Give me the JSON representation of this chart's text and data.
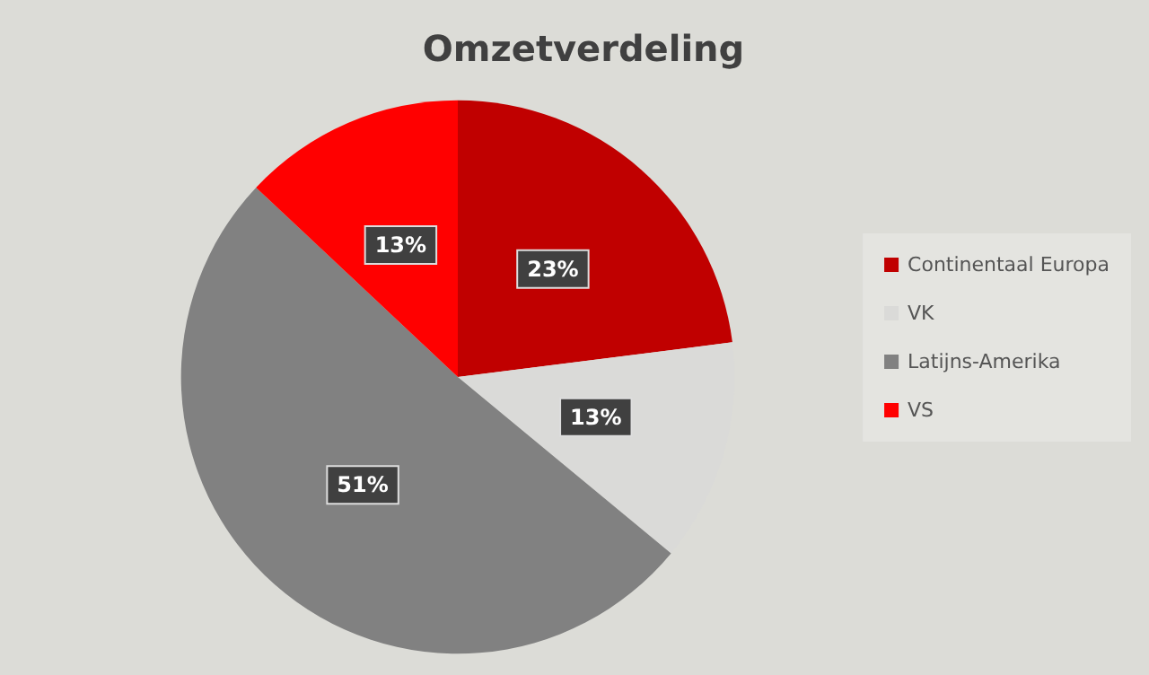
{
  "chart_data": {
    "type": "pie",
    "title": "Omzetverdeling",
    "categories": [
      "Continentaal Europa",
      "VK",
      "Latijns-Amerika",
      "VS"
    ],
    "values": [
      23,
      13,
      51,
      13
    ],
    "colors": [
      "#c00000",
      "#dadad8",
      "#818181",
      "#ff0000"
    ],
    "value_labels": [
      "23%",
      "13%",
      "51%",
      "13%"
    ],
    "legend": "right"
  }
}
